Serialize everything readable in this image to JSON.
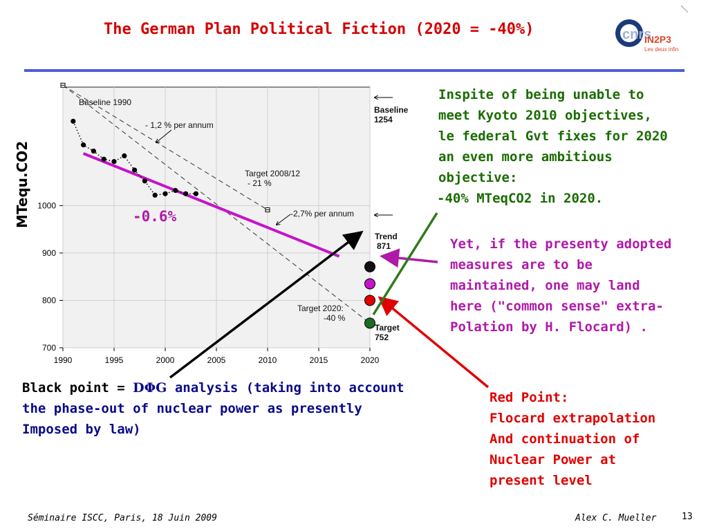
{
  "slide": {
    "title": "The German Plan Political Fiction (2020 = -40%)",
    "y_axis_label": "MTequ.CO2",
    "trend_label": "-0.6%",
    "logo": {
      "main": "CNRS",
      "sub1": "IN2P3",
      "sub2": "Les deux infinis",
      "colors": [
        "#1b3a7a",
        "#d9462a"
      ]
    },
    "right_text": [
      "Inspite of being unable to",
      "meet Kyoto 2010 objectives,",
      "le federal Gvt fixes for 2020",
      "an even more ambitious",
      "objective:",
      "-40% MTeqCO2 in 2020."
    ],
    "magenta_text": [
      "Yet, if the presenty adopted",
      "measures are to be",
      "maintained, one  may land",
      "here (\"common sense\" extra-",
      "Polation by H. Flocard) ."
    ],
    "black_text": {
      "lead": "Black point = ",
      "greek": "DΦG",
      "line1_rest": " analysis (taking into account",
      "line2": "the phase-out of nuclear power as presently",
      "line3": "Imposed by law)"
    },
    "red_text": [
      "Red Point:",
      "Flocard extrapolation",
      "And continuation of",
      "Nuclear Power at",
      "present level"
    ],
    "footer_left": "Séminaire ISCC, Paris, 18 Juin 2009",
    "footer_author": "Alex C. Mueller",
    "page_number": "13",
    "colors": {
      "title": "#d40000",
      "green": "#1a6b00",
      "magenta": "#b01aa8",
      "red": "#e00000",
      "blue": "#0a0a8a",
      "rule": "#4f5bd5"
    }
  },
  "chart_data": {
    "type": "scatter",
    "xlim": [
      1990,
      2020
    ],
    "ylim": [
      700,
      1250
    ],
    "x_ticks": [
      "1990",
      "1995",
      "2000",
      "2005",
      "2010",
      "2015",
      "2020"
    ],
    "y_ticks": [
      "700",
      "800",
      "900",
      "1000"
    ],
    "grid": true,
    "series": [
      {
        "values_x": [
          1991,
          1992,
          1993,
          1994,
          1995,
          1996,
          1997,
          1998,
          1999,
          2000,
          2001,
          2002,
          2003
        ],
        "values_y": [
          1178,
          1128,
          1115,
          1098,
          1093,
          1105,
          1075,
          1052,
          1022,
          1025,
          1032,
          1025,
          1025
        ]
      }
    ],
    "lines": [
      {
        "from": [
          1990,
          1254
        ],
        "to": [
          2010,
          991
        ]
      },
      {
        "from": [
          2010,
          991
        ],
        "to": [
          2020,
          752
        ]
      },
      {
        "from": [
          1992,
          1110
        ],
        "to": [
          2017,
          893
        ]
      }
    ],
    "annotations": [
      "Baseline 1990",
      "- 1,2 % per annum",
      "Target 2008/12",
      "- 21 %",
      "-2,7% per annum",
      "Target 2020:",
      "-40 %",
      "Baseline",
      "1254",
      "Trend",
      "871",
      "Target",
      "752"
    ],
    "marked_points": [
      {
        "x": 2020,
        "y": 871
      },
      {
        "x": 2020,
        "y": 835
      },
      {
        "x": 2020,
        "y": 800
      },
      {
        "x": 2020,
        "y": 752
      }
    ]
  }
}
